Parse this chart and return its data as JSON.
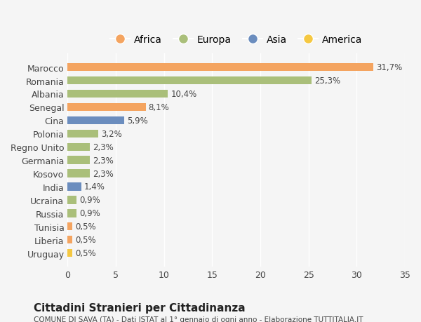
{
  "countries": [
    "Marocco",
    "Romania",
    "Albania",
    "Senegal",
    "Cina",
    "Polonia",
    "Regno Unito",
    "Germania",
    "Kosovo",
    "India",
    "Ucraina",
    "Russia",
    "Tunisia",
    "Liberia",
    "Uruguay"
  ],
  "values": [
    31.7,
    25.3,
    10.4,
    8.1,
    5.9,
    3.2,
    2.3,
    2.3,
    2.3,
    1.4,
    0.9,
    0.9,
    0.5,
    0.5,
    0.5
  ],
  "labels": [
    "31,7%",
    "25,3%",
    "10,4%",
    "8,1%",
    "5,9%",
    "3,2%",
    "2,3%",
    "2,3%",
    "2,3%",
    "1,4%",
    "0,9%",
    "0,9%",
    "0,5%",
    "0,5%",
    "0,5%"
  ],
  "continents": [
    "Africa",
    "Europa",
    "Europa",
    "Africa",
    "Asia",
    "Europa",
    "Europa",
    "Europa",
    "Europa",
    "Asia",
    "Europa",
    "Europa",
    "Africa",
    "Africa",
    "America"
  ],
  "colors": {
    "Africa": "#F4A460",
    "Europa": "#AABF7A",
    "Asia": "#6B8DBE",
    "America": "#F5C842"
  },
  "background_color": "#f5f5f5",
  "title": "Cittadini Stranieri per Cittadinanza",
  "subtitle": "COMUNE DI SAVA (TA) - Dati ISTAT al 1° gennaio di ogni anno - Elaborazione TUTTITALIA.IT",
  "xlim": [
    0,
    35
  ],
  "xticks": [
    0,
    5,
    10,
    15,
    20,
    25,
    30,
    35
  ],
  "legend_order": [
    "Africa",
    "Europa",
    "Asia",
    "America"
  ]
}
